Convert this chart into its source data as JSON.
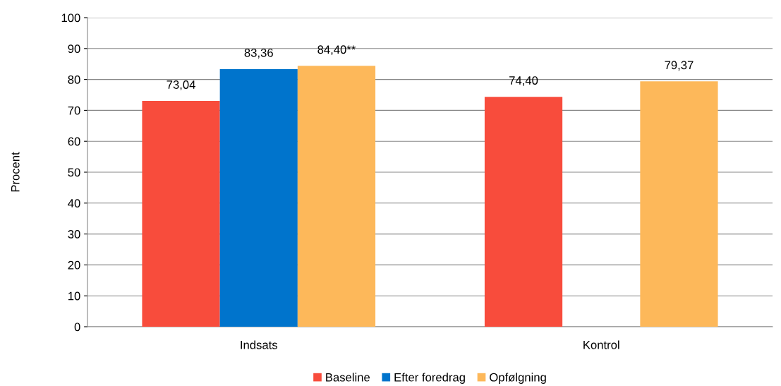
{
  "chart_data": {
    "type": "bar",
    "ylabel": "Procent",
    "categories": [
      "Indsats",
      "Kontrol"
    ],
    "series": [
      {
        "name": "Baseline",
        "color": "#f84c3c",
        "values": [
          73.04,
          74.4
        ],
        "value_labels": [
          "73,04",
          "74,40"
        ]
      },
      {
        "name": "Efter foredrag",
        "color": "#0074cc",
        "values": [
          83.36,
          null
        ],
        "value_labels": [
          "83,36",
          null
        ]
      },
      {
        "name": "Opfølgning",
        "color": "#fdb85a",
        "values": [
          84.4,
          79.37
        ],
        "value_labels": [
          "84,40**",
          "79,37"
        ]
      }
    ],
    "ylim": [
      0,
      100
    ],
    "yticks": [
      0,
      10,
      20,
      30,
      40,
      50,
      60,
      70,
      80,
      90,
      100
    ],
    "grid": "y",
    "legend": "bottom"
  }
}
